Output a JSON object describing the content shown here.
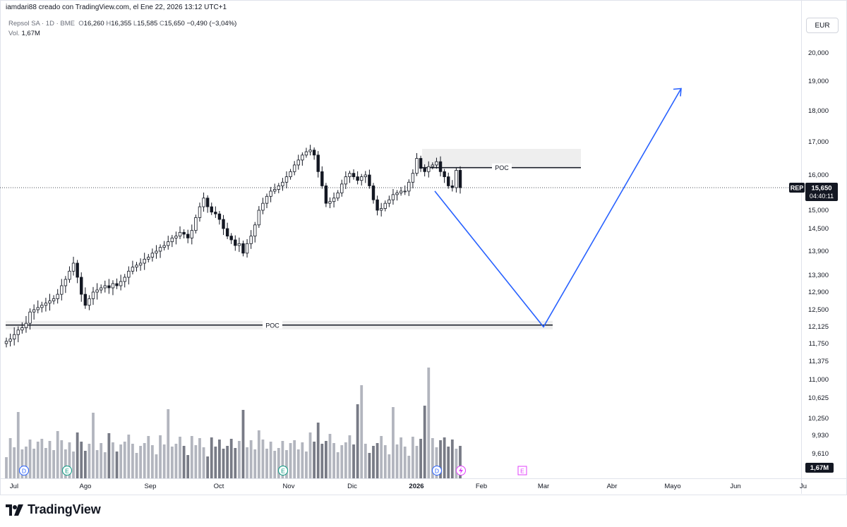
{
  "header": {
    "created_by": "iamdari88 creado con TradingView.com, el Ene 22, 2026 13:12 UTC+1",
    "symbol_line": "Repsol SA · 1D · BME",
    "ohlc": [
      {
        "k": "O",
        "v": "16,260"
      },
      {
        "k": "H",
        "v": "16,355"
      },
      {
        "k": "L",
        "v": "15,585"
      },
      {
        "k": "C",
        "v": "15,650"
      }
    ],
    "change": "−0,490 (−3,04%)",
    "vol_label": "Vol.",
    "vol_value": "1,67M"
  },
  "currency_button": "EUR",
  "footer": {
    "brand": "TradingView"
  },
  "colors": {
    "up": "#ffffff",
    "down": "#131722",
    "drawing": "#2962ff",
    "poc_zone": "#eeeeee"
  },
  "chart_data": {
    "type": "candlestick",
    "symbol": "REP",
    "last_price_label": "15,650",
    "countdown_label": "04:40:11",
    "volume_label": "1,67M",
    "y_ticks": [
      "20,000",
      "19,000",
      "18,000",
      "17,000",
      "16,000",
      "15,650",
      "15,000",
      "14,500",
      "13,900",
      "13,300",
      "12,900",
      "12,500",
      "12,125",
      "11,750",
      "11,375",
      "11,000",
      "10,625",
      "10,250",
      "9,930",
      "9,610"
    ],
    "y_tick_values": [
      20.0,
      19.0,
      18.0,
      17.0,
      16.0,
      15.65,
      15.0,
      14.5,
      13.9,
      13.3,
      12.9,
      12.5,
      12.125,
      11.75,
      11.375,
      11.0,
      10.625,
      10.25,
      9.93,
      9.61
    ],
    "x_ticks": [
      "Jul",
      "Ago",
      "Sep",
      "Oct",
      "Nov",
      "Dic",
      "2026",
      "Feb",
      "Mar",
      "Abr",
      "Mayo",
      "Jun",
      "Ju"
    ],
    "poc_labels": [
      "POC",
      "POC"
    ],
    "poc_levels": [
      12.16,
      16.22
    ],
    "event_markers": [
      "D",
      "E",
      "E",
      "D",
      "E"
    ],
    "closes": [
      11.8,
      11.85,
      11.95,
      12.05,
      12.1,
      12.2,
      12.45,
      12.5,
      12.55,
      12.6,
      12.65,
      12.7,
      12.75,
      12.85,
      13.05,
      13.2,
      13.4,
      13.6,
      13.25,
      12.85,
      12.6,
      12.75,
      12.9,
      12.95,
      13.0,
      13.05,
      13.0,
      13.1,
      13.05,
      13.15,
      13.25,
      13.4,
      13.5,
      13.55,
      13.6,
      13.7,
      13.75,
      13.85,
      13.9,
      14.0,
      14.05,
      14.15,
      14.25,
      14.3,
      14.4,
      14.35,
      14.25,
      14.45,
      14.8,
      15.1,
      15.35,
      15.1,
      14.95,
      14.9,
      14.75,
      14.5,
      14.3,
      14.2,
      14.05,
      14.1,
      13.85,
      14.1,
      14.3,
      14.6,
      15.0,
      15.2,
      15.4,
      15.55,
      15.6,
      15.7,
      15.8,
      15.95,
      16.1,
      16.3,
      16.45,
      16.6,
      16.7,
      16.75,
      16.6,
      16.1,
      15.7,
      15.2,
      15.25,
      15.35,
      15.5,
      15.75,
      15.95,
      16.05,
      15.95,
      15.85,
      15.95,
      16.0,
      15.7,
      15.3,
      15.0,
      15.05,
      15.2,
      15.3,
      15.45,
      15.5,
      15.55,
      15.55,
      15.8,
      16.05,
      16.5,
      16.2,
      16.1,
      16.25,
      16.3,
      16.4,
      16.1,
      15.95,
      15.7,
      15.65,
      16.14,
      15.65
    ],
    "projection": [
      {
        "label": "start",
        "price": 15.55
      },
      {
        "label": "target-low",
        "price": 12.12
      },
      {
        "label": "target-high",
        "price": 18.75
      }
    ]
  }
}
